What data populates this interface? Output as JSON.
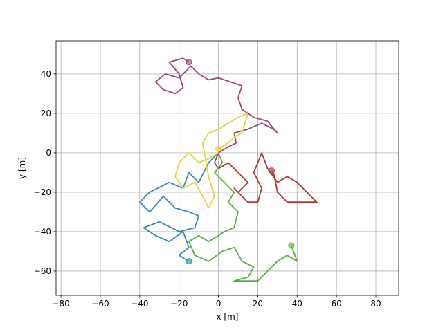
{
  "chart_data": {
    "type": "line",
    "x_label": "x [m]",
    "y_label": "y [m]",
    "xlim": [
      -82.5,
      91.6
    ],
    "ylim": [
      -72.3,
      56.8
    ],
    "xticks": [
      {
        "value": -80,
        "label": "−80"
      },
      {
        "value": -60,
        "label": "−60"
      },
      {
        "value": -40,
        "label": "−40"
      },
      {
        "value": -20,
        "label": "−20"
      },
      0,
      20,
      40,
      60,
      80
    ],
    "yticks": [
      {
        "value": -60,
        "label": "−60"
      },
      {
        "value": -40,
        "label": "−40"
      },
      {
        "value": -20,
        "label": "−20"
      },
      0,
      20,
      40
    ],
    "grid": true,
    "end_markers": true,
    "series": [
      {
        "color": "#a0407f",
        "x": [
          0,
          5,
          9,
          8,
          15,
          22,
          28,
          30,
          25,
          18,
          12,
          10,
          12,
          6,
          0,
          -5,
          -10,
          -14,
          -20,
          -27,
          -32,
          -28,
          -22,
          -18,
          -20,
          -25,
          -18,
          -15
        ],
        "y": [
          0,
          3,
          5,
          10,
          12,
          15,
          12,
          10,
          16,
          18,
          22,
          28,
          34,
          36,
          38,
          37,
          40,
          44,
          38,
          40,
          36,
          32,
          30,
          33,
          40,
          46,
          48,
          46
        ]
      },
      {
        "color": "#b03535",
        "x": [
          0,
          -2,
          0,
          5,
          10,
          15,
          10,
          8,
          15,
          20,
          22,
          18,
          20,
          22,
          25,
          30,
          35,
          40,
          45,
          50,
          42,
          35,
          30,
          28,
          27
        ],
        "y": [
          0,
          -5,
          -8,
          -5,
          -10,
          -15,
          -20,
          -18,
          -25,
          -25,
          -18,
          -10,
          -5,
          0,
          -8,
          -15,
          -12,
          -15,
          -20,
          -25,
          -25,
          -25,
          -20,
          -10,
          -9
        ]
      },
      {
        "color": "#318bb6",
        "x": [
          0,
          -5,
          -10,
          -15,
          -18,
          -25,
          -35,
          -40,
          -35,
          -28,
          -22,
          -15,
          -10,
          -12,
          -20,
          -30,
          -38,
          -32,
          -25,
          -18,
          -15,
          -20,
          -15
        ],
        "y": [
          0,
          -5,
          -15,
          -10,
          -18,
          -15,
          -20,
          -25,
          -30,
          -22,
          -28,
          -30,
          -32,
          -38,
          -40,
          -35,
          -38,
          -42,
          -45,
          -40,
          -48,
          -52,
          -55
        ]
      },
      {
        "color": "#e2d636",
        "x": [
          0,
          -5,
          -10,
          -15,
          -20,
          -22,
          -18,
          -12,
          -8,
          -5,
          -2,
          -5,
          -8,
          -5,
          0,
          5,
          10,
          15,
          12,
          8,
          5,
          0
        ],
        "y": [
          0,
          -3,
          -5,
          0,
          -5,
          -12,
          -18,
          -15,
          -22,
          -28,
          -22,
          -12,
          5,
          10,
          12,
          15,
          18,
          20,
          10,
          8,
          5,
          2
        ]
      },
      {
        "color": "#55ad3e",
        "x": [
          0,
          2,
          -2,
          3,
          8,
          5,
          10,
          8,
          3,
          0,
          -5,
          -10,
          -15,
          -12,
          -5,
          2,
          8,
          12,
          18,
          15,
          8,
          20,
          25,
          30,
          35,
          40,
          37
        ],
        "y": [
          0,
          -5,
          -10,
          -15,
          -20,
          -25,
          -30,
          -38,
          -40,
          -42,
          -45,
          -42,
          -45,
          -52,
          -55,
          -50,
          -48,
          -55,
          -58,
          -63,
          -65,
          -65,
          -60,
          -55,
          -52,
          -55,
          -47
        ]
      }
    ]
  }
}
